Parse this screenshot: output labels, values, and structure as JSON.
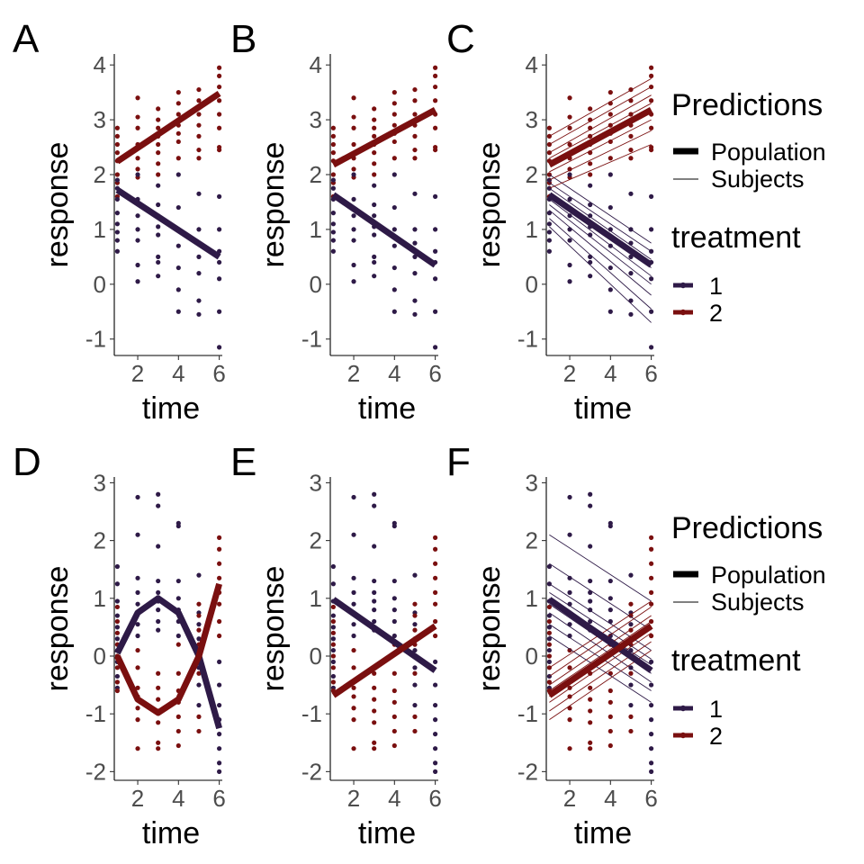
{
  "colors": {
    "treatment_1": "#2e1a47",
    "treatment_2": "#7a0f0f",
    "axis_text": "#4d4d4d"
  },
  "chart_data": [
    {
      "panel": "A",
      "type": "scatter+line",
      "xlabel": "time",
      "ylabel": "response",
      "xlim": [
        0.85,
        6.15
      ],
      "ylim": [
        -1.3,
        4.2
      ],
      "xticks": [
        2,
        4,
        6
      ],
      "yticks": [
        -1,
        0,
        1,
        2,
        3,
        4
      ],
      "population": [
        {
          "treatment": "1",
          "x": [
            1,
            6
          ],
          "y": [
            1.72,
            0.5
          ]
        },
        {
          "treatment": "2",
          "x": [
            1,
            6
          ],
          "y": [
            2.24,
            3.48
          ]
        }
      ],
      "subjects": []
    },
    {
      "panel": "B",
      "type": "scatter+line",
      "xlabel": "time",
      "ylabel": "response",
      "xlim": [
        0.85,
        6.15
      ],
      "ylim": [
        -1.3,
        4.2
      ],
      "xticks": [
        2,
        4,
        6
      ],
      "yticks": [
        -1,
        0,
        1,
        2,
        3,
        4
      ],
      "population": [
        {
          "treatment": "1",
          "x": [
            1,
            6
          ],
          "y": [
            1.63,
            0.35
          ]
        },
        {
          "treatment": "2",
          "x": [
            1,
            6
          ],
          "y": [
            2.18,
            3.18
          ]
        }
      ],
      "subjects": []
    },
    {
      "panel": "C",
      "type": "scatter+line",
      "xlabel": "time",
      "ylabel": "response",
      "xlim": [
        0.85,
        6.15
      ],
      "ylim": [
        -1.3,
        4.2
      ],
      "xticks": [
        2,
        4,
        6
      ],
      "yticks": [
        -1,
        0,
        1,
        2,
        3,
        4
      ],
      "population": [
        {
          "treatment": "1",
          "x": [
            1,
            6
          ],
          "y": [
            1.63,
            0.35
          ]
        },
        {
          "treatment": "2",
          "x": [
            1,
            6
          ],
          "y": [
            2.18,
            3.18
          ]
        }
      ],
      "subjects": [
        {
          "treatment": "1",
          "y1": [
            2.0,
            1.85,
            1.75,
            1.65,
            1.55,
            1.45,
            1.35,
            1.2,
            1.05
          ],
          "y6": [
            0.75,
            0.6,
            0.45,
            0.3,
            0.15,
            0.0,
            -0.2,
            -0.45,
            -0.7
          ]
        },
        {
          "treatment": "2",
          "y1": [
            2.7,
            2.55,
            2.4,
            2.3,
            2.2,
            2.05,
            1.9,
            1.75
          ],
          "y6": [
            3.75,
            3.6,
            3.45,
            3.3,
            3.15,
            3.0,
            2.8,
            2.55
          ]
        }
      ]
    },
    {
      "panel": "D",
      "type": "scatter+line",
      "xlabel": "time",
      "ylabel": "response",
      "xlim": [
        0.85,
        6.15
      ],
      "ylim": [
        -2.15,
        3.1
      ],
      "xticks": [
        2,
        4,
        6
      ],
      "yticks": [
        -2,
        -1,
        0,
        1,
        2,
        3
      ],
      "population": [
        {
          "treatment": "1",
          "x": [
            1,
            2,
            3,
            4,
            5,
            6
          ],
          "y": [
            0.05,
            0.75,
            1.0,
            0.75,
            0.0,
            -1.25
          ]
        },
        {
          "treatment": "2",
          "x": [
            1,
            2,
            3,
            4,
            5,
            6
          ],
          "y": [
            0.0,
            -0.75,
            -0.98,
            -0.75,
            0.0,
            1.25
          ]
        }
      ],
      "subjects": []
    },
    {
      "panel": "E",
      "type": "scatter+line",
      "xlabel": "time",
      "ylabel": "response",
      "xlim": [
        0.85,
        6.15
      ],
      "ylim": [
        -2.15,
        3.1
      ],
      "xticks": [
        2,
        4,
        6
      ],
      "yticks": [
        -2,
        -1,
        0,
        1,
        2,
        3
      ],
      "population": [
        {
          "treatment": "1",
          "x": [
            1,
            6
          ],
          "y": [
            0.98,
            -0.25
          ]
        },
        {
          "treatment": "2",
          "x": [
            1,
            6
          ],
          "y": [
            -0.68,
            0.52
          ]
        }
      ],
      "subjects": []
    },
    {
      "panel": "F",
      "type": "scatter+line",
      "xlabel": "time",
      "ylabel": "response",
      "xlim": [
        0.85,
        6.15
      ],
      "ylim": [
        -2.15,
        3.1
      ],
      "xticks": [
        2,
        4,
        6
      ],
      "yticks": [
        -2,
        -1,
        0,
        1,
        2,
        3
      ],
      "population": [
        {
          "treatment": "1",
          "x": [
            1,
            6
          ],
          "y": [
            0.98,
            -0.25
          ]
        },
        {
          "treatment": "2",
          "x": [
            1,
            6
          ],
          "y": [
            -0.68,
            0.52
          ]
        }
      ],
      "subjects": [
        {
          "treatment": "1",
          "y1": [
            2.1,
            1.6,
            1.25,
            1.1,
            1.0,
            0.9,
            0.75,
            0.55,
            0.35
          ],
          "y6": [
            0.95,
            0.45,
            0.1,
            -0.05,
            -0.15,
            -0.3,
            -0.45,
            -0.6,
            -0.8
          ]
        },
        {
          "treatment": "2",
          "y1": [
            -0.2,
            -0.35,
            -0.5,
            -0.6,
            -0.7,
            -0.8,
            -0.95,
            -1.1
          ],
          "y6": [
            0.95,
            0.85,
            0.7,
            0.6,
            0.5,
            0.4,
            0.25,
            0.1
          ]
        }
      ]
    }
  ],
  "points_top": [
    {
      "x": 1,
      "y": 2.85,
      "t": "2"
    },
    {
      "x": 1,
      "y": 2.7,
      "t": "2"
    },
    {
      "x": 1,
      "y": 2.55,
      "t": "2"
    },
    {
      "x": 1,
      "y": 2.4,
      "t": "2"
    },
    {
      "x": 1,
      "y": 2.25,
      "t": "2"
    },
    {
      "x": 1,
      "y": 2.0,
      "t": "2"
    },
    {
      "x": 1,
      "y": 1.85,
      "t": "2"
    },
    {
      "x": 1,
      "y": 1.6,
      "t": "2"
    },
    {
      "x": 1,
      "y": 1.9,
      "t": "1"
    },
    {
      "x": 1,
      "y": 1.75,
      "t": "1"
    },
    {
      "x": 1,
      "y": 1.55,
      "t": "1"
    },
    {
      "x": 1,
      "y": 1.3,
      "t": "1"
    },
    {
      "x": 1,
      "y": 1.1,
      "t": "1"
    },
    {
      "x": 1,
      "y": 0.95,
      "t": "1"
    },
    {
      "x": 1,
      "y": 0.8,
      "t": "1"
    },
    {
      "x": 1,
      "y": 0.6,
      "t": "1"
    },
    {
      "x": 2,
      "y": 3.4,
      "t": "2"
    },
    {
      "x": 2,
      "y": 3.05,
      "t": "2"
    },
    {
      "x": 2,
      "y": 2.85,
      "t": "2"
    },
    {
      "x": 2,
      "y": 2.55,
      "t": "2"
    },
    {
      "x": 2,
      "y": 2.3,
      "t": "2"
    },
    {
      "x": 2,
      "y": 2.1,
      "t": "2"
    },
    {
      "x": 2,
      "y": 1.95,
      "t": "2"
    },
    {
      "x": 2,
      "y": 2.0,
      "t": "1"
    },
    {
      "x": 2,
      "y": 1.55,
      "t": "1"
    },
    {
      "x": 2,
      "y": 1.25,
      "t": "1"
    },
    {
      "x": 2,
      "y": 1.0,
      "t": "1"
    },
    {
      "x": 2,
      "y": 0.8,
      "t": "1"
    },
    {
      "x": 2,
      "y": 0.35,
      "t": "1"
    },
    {
      "x": 2,
      "y": 0.05,
      "t": "1"
    },
    {
      "x": 3,
      "y": 3.2,
      "t": "2"
    },
    {
      "x": 3,
      "y": 3.0,
      "t": "2"
    },
    {
      "x": 3,
      "y": 2.85,
      "t": "2"
    },
    {
      "x": 3,
      "y": 2.7,
      "t": "2"
    },
    {
      "x": 3,
      "y": 2.55,
      "t": "2"
    },
    {
      "x": 3,
      "y": 2.4,
      "t": "2"
    },
    {
      "x": 3,
      "y": 2.2,
      "t": "2"
    },
    {
      "x": 3,
      "y": 2.0,
      "t": "2"
    },
    {
      "x": 3,
      "y": 1.8,
      "t": "1"
    },
    {
      "x": 3,
      "y": 1.45,
      "t": "1"
    },
    {
      "x": 3,
      "y": 1.25,
      "t": "1"
    },
    {
      "x": 3,
      "y": 1.05,
      "t": "1"
    },
    {
      "x": 3,
      "y": 0.9,
      "t": "1"
    },
    {
      "x": 3,
      "y": 0.5,
      "t": "1"
    },
    {
      "x": 3,
      "y": 0.4,
      "t": "1"
    },
    {
      "x": 3,
      "y": 0.15,
      "t": "1"
    },
    {
      "x": 4,
      "y": 3.5,
      "t": "2"
    },
    {
      "x": 4,
      "y": 3.3,
      "t": "2"
    },
    {
      "x": 4,
      "y": 3.1,
      "t": "2"
    },
    {
      "x": 4,
      "y": 2.9,
      "t": "2"
    },
    {
      "x": 4,
      "y": 2.75,
      "t": "2"
    },
    {
      "x": 4,
      "y": 2.6,
      "t": "2"
    },
    {
      "x": 4,
      "y": 2.3,
      "t": "2"
    },
    {
      "x": 4,
      "y": 2.0,
      "t": "1"
    },
    {
      "x": 4,
      "y": 1.4,
      "t": "1"
    },
    {
      "x": 4,
      "y": 1.0,
      "t": "1"
    },
    {
      "x": 4,
      "y": 0.7,
      "t": "1"
    },
    {
      "x": 4,
      "y": 0.3,
      "t": "1"
    },
    {
      "x": 4,
      "y": -0.1,
      "t": "1"
    },
    {
      "x": 4,
      "y": -0.5,
      "t": "1"
    },
    {
      "x": 5,
      "y": 3.55,
      "t": "2"
    },
    {
      "x": 5,
      "y": 3.35,
      "t": "2"
    },
    {
      "x": 5,
      "y": 3.1,
      "t": "2"
    },
    {
      "x": 5,
      "y": 2.9,
      "t": "2"
    },
    {
      "x": 5,
      "y": 2.7,
      "t": "2"
    },
    {
      "x": 5,
      "y": 2.45,
      "t": "2"
    },
    {
      "x": 5,
      "y": 2.3,
      "t": "2"
    },
    {
      "x": 5,
      "y": 1.65,
      "t": "1"
    },
    {
      "x": 5,
      "y": 1.0,
      "t": "1"
    },
    {
      "x": 5,
      "y": 0.75,
      "t": "1"
    },
    {
      "x": 5,
      "y": 0.5,
      "t": "1"
    },
    {
      "x": 5,
      "y": 0.2,
      "t": "1"
    },
    {
      "x": 5,
      "y": -0.3,
      "t": "1"
    },
    {
      "x": 5,
      "y": -0.55,
      "t": "1"
    },
    {
      "x": 6,
      "y": 3.95,
      "t": "2"
    },
    {
      "x": 6,
      "y": 3.8,
      "t": "2"
    },
    {
      "x": 6,
      "y": 3.6,
      "t": "2"
    },
    {
      "x": 6,
      "y": 3.35,
      "t": "2"
    },
    {
      "x": 6,
      "y": 3.1,
      "t": "2"
    },
    {
      "x": 6,
      "y": 2.85,
      "t": "2"
    },
    {
      "x": 6,
      "y": 2.5,
      "t": "2"
    },
    {
      "x": 6,
      "y": 2.45,
      "t": "2"
    },
    {
      "x": 6,
      "y": 1.6,
      "t": "1"
    },
    {
      "x": 6,
      "y": 1.0,
      "t": "1"
    },
    {
      "x": 6,
      "y": 0.6,
      "t": "1"
    },
    {
      "x": 6,
      "y": 0.4,
      "t": "1"
    },
    {
      "x": 6,
      "y": 0.1,
      "t": "1"
    },
    {
      "x": 6,
      "y": -0.5,
      "t": "1"
    },
    {
      "x": 6,
      "y": -1.15,
      "t": "1"
    }
  ],
  "points_bottom": [
    {
      "x": 1,
      "y": 1.55,
      "t": "1"
    },
    {
      "x": 1,
      "y": 1.25,
      "t": "1"
    },
    {
      "x": 1,
      "y": 0.95,
      "t": "1"
    },
    {
      "x": 1,
      "y": 0.7,
      "t": "1"
    },
    {
      "x": 1,
      "y": 0.5,
      "t": "1"
    },
    {
      "x": 1,
      "y": 0.3,
      "t": "1"
    },
    {
      "x": 1,
      "y": 0.1,
      "t": "1"
    },
    {
      "x": 1,
      "y": -0.1,
      "t": "1"
    },
    {
      "x": 1,
      "y": -0.35,
      "t": "1"
    },
    {
      "x": 1,
      "y": -0.55,
      "t": "1"
    },
    {
      "x": 1,
      "y": 0.85,
      "t": "2"
    },
    {
      "x": 1,
      "y": 0.6,
      "t": "2"
    },
    {
      "x": 1,
      "y": 0.4,
      "t": "2"
    },
    {
      "x": 1,
      "y": 0.2,
      "t": "2"
    },
    {
      "x": 1,
      "y": 0.0,
      "t": "2"
    },
    {
      "x": 1,
      "y": -0.2,
      "t": "2"
    },
    {
      "x": 1,
      "y": -0.45,
      "t": "2"
    },
    {
      "x": 1,
      "y": -0.6,
      "t": "2"
    },
    {
      "x": 2,
      "y": 2.75,
      "t": "1"
    },
    {
      "x": 2,
      "y": 2.1,
      "t": "1"
    },
    {
      "x": 2,
      "y": 1.35,
      "t": "1"
    },
    {
      "x": 2,
      "y": 1.1,
      "t": "1"
    },
    {
      "x": 2,
      "y": 0.9,
      "t": "1"
    },
    {
      "x": 2,
      "y": 0.75,
      "t": "1"
    },
    {
      "x": 2,
      "y": 0.55,
      "t": "1"
    },
    {
      "x": 2,
      "y": 0.35,
      "t": "1"
    },
    {
      "x": 2,
      "y": 0.1,
      "t": "2"
    },
    {
      "x": 2,
      "y": -0.2,
      "t": "2"
    },
    {
      "x": 2,
      "y": -0.55,
      "t": "2"
    },
    {
      "x": 2,
      "y": -0.7,
      "t": "2"
    },
    {
      "x": 2,
      "y": -0.9,
      "t": "2"
    },
    {
      "x": 2,
      "y": -1.1,
      "t": "2"
    },
    {
      "x": 2,
      "y": -1.6,
      "t": "2"
    },
    {
      "x": 3,
      "y": 2.8,
      "t": "1"
    },
    {
      "x": 3,
      "y": 2.6,
      "t": "1"
    },
    {
      "x": 3,
      "y": 1.9,
      "t": "1"
    },
    {
      "x": 3,
      "y": 1.3,
      "t": "1"
    },
    {
      "x": 3,
      "y": 1.1,
      "t": "1"
    },
    {
      "x": 3,
      "y": 0.95,
      "t": "1"
    },
    {
      "x": 3,
      "y": 0.8,
      "t": "1"
    },
    {
      "x": 3,
      "y": 0.6,
      "t": "1"
    },
    {
      "x": 3,
      "y": 0.45,
      "t": "1"
    },
    {
      "x": 3,
      "y": -0.3,
      "t": "2"
    },
    {
      "x": 3,
      "y": -0.55,
      "t": "2"
    },
    {
      "x": 3,
      "y": -0.75,
      "t": "2"
    },
    {
      "x": 3,
      "y": -0.95,
      "t": "2"
    },
    {
      "x": 3,
      "y": -1.15,
      "t": "2"
    },
    {
      "x": 3,
      "y": -1.5,
      "t": "2"
    },
    {
      "x": 3,
      "y": -1.6,
      "t": "2"
    },
    {
      "x": 4,
      "y": 2.3,
      "t": "1"
    },
    {
      "x": 4,
      "y": 2.25,
      "t": "1"
    },
    {
      "x": 4,
      "y": 1.3,
      "t": "1"
    },
    {
      "x": 4,
      "y": 1.0,
      "t": "1"
    },
    {
      "x": 4,
      "y": 0.8,
      "t": "1"
    },
    {
      "x": 4,
      "y": 0.6,
      "t": "1"
    },
    {
      "x": 4,
      "y": 0.35,
      "t": "1"
    },
    {
      "x": 4,
      "y": 0.2,
      "t": "2"
    },
    {
      "x": 4,
      "y": -0.3,
      "t": "2"
    },
    {
      "x": 4,
      "y": -0.6,
      "t": "2"
    },
    {
      "x": 4,
      "y": -0.8,
      "t": "2"
    },
    {
      "x": 4,
      "y": -1.05,
      "t": "2"
    },
    {
      "x": 4,
      "y": -1.3,
      "t": "2"
    },
    {
      "x": 4,
      "y": -1.55,
      "t": "2"
    },
    {
      "x": 5,
      "y": 1.4,
      "t": "1"
    },
    {
      "x": 5,
      "y": 0.75,
      "t": "1"
    },
    {
      "x": 5,
      "y": 0.55,
      "t": "1"
    },
    {
      "x": 5,
      "y": 0.3,
      "t": "1"
    },
    {
      "x": 5,
      "y": 0.1,
      "t": "1"
    },
    {
      "x": 5,
      "y": -0.2,
      "t": "1"
    },
    {
      "x": 5,
      "y": -0.5,
      "t": "1"
    },
    {
      "x": 5,
      "y": -0.85,
      "t": "1"
    },
    {
      "x": 5,
      "y": 0.9,
      "t": "2"
    },
    {
      "x": 5,
      "y": 0.7,
      "t": "2"
    },
    {
      "x": 5,
      "y": 0.45,
      "t": "2"
    },
    {
      "x": 5,
      "y": 0.2,
      "t": "2"
    },
    {
      "x": 5,
      "y": 0.0,
      "t": "2"
    },
    {
      "x": 5,
      "y": -0.3,
      "t": "2"
    },
    {
      "x": 5,
      "y": -1.05,
      "t": "2"
    },
    {
      "x": 5,
      "y": -1.3,
      "t": "2"
    },
    {
      "x": 6,
      "y": 2.05,
      "t": "2"
    },
    {
      "x": 6,
      "y": 1.85,
      "t": "2"
    },
    {
      "x": 6,
      "y": 1.6,
      "t": "2"
    },
    {
      "x": 6,
      "y": 1.35,
      "t": "2"
    },
    {
      "x": 6,
      "y": 1.1,
      "t": "2"
    },
    {
      "x": 6,
      "y": 0.9,
      "t": "2"
    },
    {
      "x": 6,
      "y": 0.6,
      "t": "2"
    },
    {
      "x": 6,
      "y": 0.35,
      "t": "2"
    },
    {
      "x": 6,
      "y": -0.1,
      "t": "1"
    },
    {
      "x": 6,
      "y": -0.5,
      "t": "1"
    },
    {
      "x": 6,
      "y": -0.85,
      "t": "1"
    },
    {
      "x": 6,
      "y": -1.1,
      "t": "1"
    },
    {
      "x": 6,
      "y": -1.35,
      "t": "1"
    },
    {
      "x": 6,
      "y": -1.6,
      "t": "1"
    },
    {
      "x": 6,
      "y": -1.85,
      "t": "1"
    },
    {
      "x": 6,
      "y": -2.0,
      "t": "1"
    }
  ],
  "legend": {
    "predictions_title": "Predictions",
    "population_label": "Population",
    "subjects_label": "Subjects",
    "treatment_title": "treatment",
    "treatment_levels": [
      "1",
      "2"
    ]
  }
}
